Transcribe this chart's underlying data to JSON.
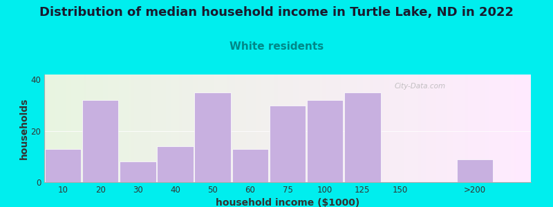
{
  "title": "Distribution of median household income in Turtle Lake, ND in 2022",
  "subtitle": "White residents",
  "xlabel": "household income ($1000)",
  "ylabel": "households",
  "bar_labels": [
    "10",
    "20",
    "30",
    "40",
    "50",
    "60",
    "75",
    "100",
    "125",
    "150",
    ">200"
  ],
  "bar_values": [
    13,
    32,
    8,
    14,
    35,
    13,
    30,
    32,
    35,
    0,
    9
  ],
  "bar_positions": [
    0,
    1,
    2,
    3,
    4,
    5,
    6,
    7,
    8,
    9,
    11
  ],
  "bar_color": "#c8b0e0",
  "bar_edge_color": "#ffffff",
  "ylim": [
    0,
    42
  ],
  "yticks": [
    0,
    20,
    40
  ],
  "background_color": "#00eeee",
  "title_fontsize": 13,
  "subtitle_fontsize": 11,
  "subtitle_color": "#008888",
  "axis_label_fontsize": 10,
  "tick_fontsize": 8.5,
  "watermark": "City-Data.com"
}
